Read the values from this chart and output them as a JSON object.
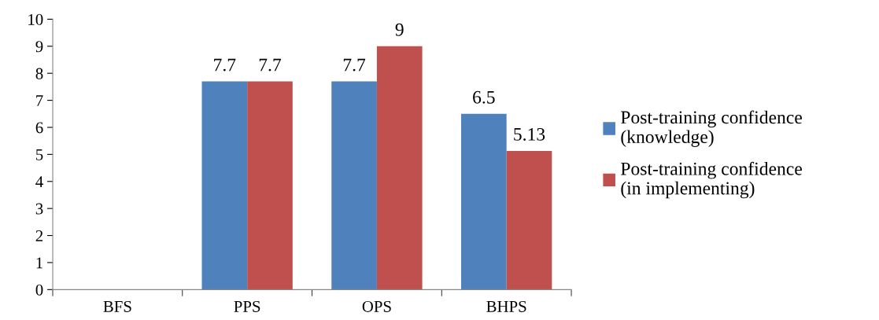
{
  "chart_data": {
    "type": "bar",
    "categories": [
      "BFS",
      "PPS",
      "OPS",
      "BHPS"
    ],
    "series": [
      {
        "name": "Post-training confidence (knowledge)",
        "color": "#4f81bd",
        "values": [
          null,
          7.7,
          7.7,
          6.5
        ]
      },
      {
        "name": "Post-training confidence (in implementing)",
        "color": "#c0504d",
        "values": [
          null,
          7.7,
          9,
          5.13
        ]
      }
    ],
    "ylim": [
      0,
      10
    ],
    "yticks": [
      0,
      1,
      2,
      3,
      4,
      5,
      6,
      7,
      8,
      9,
      10
    ],
    "data_labels": true,
    "grid": false,
    "legend": "right"
  }
}
